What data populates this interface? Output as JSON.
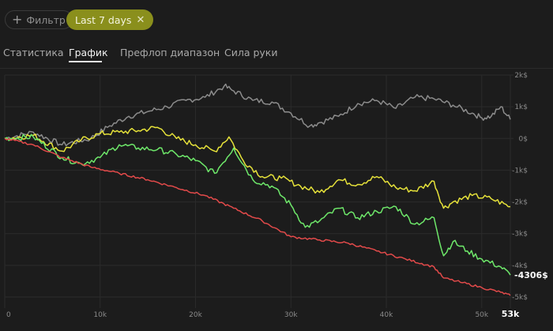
{
  "toolbar": {
    "filter_label": "Фильтр",
    "filter_icon": "plus-icon",
    "period_chip_label": "Last 7 days",
    "period_chip_close_icon": "close-icon",
    "accent_color": "#8a8f1c"
  },
  "tabs": [
    {
      "label": "Статистика",
      "active": false
    },
    {
      "label": "График",
      "active": true
    },
    {
      "label": "Префлоп диапазон",
      "active": false
    },
    {
      "label": "Сила руки",
      "active": false
    }
  ],
  "chart_data": {
    "type": "line",
    "title": "",
    "xlabel": "",
    "ylabel": "",
    "xlim": [
      0,
      53000
    ],
    "ylim": [
      -5000,
      2000
    ],
    "x_tick_labels": [
      "0",
      "10k",
      "20k",
      "30k",
      "40k",
      "50k"
    ],
    "x_end_label": "53k",
    "y_tick_labels": [
      "2k$",
      "1k$",
      "0$",
      "-1k$",
      "-2k$",
      "-3k$",
      "-4k$",
      "-5k$"
    ],
    "grid": true,
    "legend": "none",
    "end_value_label": "-4306$",
    "series": [
      {
        "color": "#8c8c8c",
        "x": [
          0,
          3000,
          6000,
          9000,
          11000,
          13000,
          15000,
          17000,
          19000,
          21000,
          23000,
          24000,
          26000,
          28000,
          30000,
          32000,
          33000,
          35000,
          37000,
          39000,
          41000,
          43000,
          45000,
          47000,
          49000,
          50000,
          51000,
          52000,
          53000
        ],
        "y": [
          0,
          200,
          -200,
          0,
          400,
          700,
          850,
          1000,
          1200,
          1300,
          1650,
          1500,
          1200,
          1150,
          800,
          400,
          500,
          700,
          1100,
          1200,
          950,
          1300,
          1250,
          1050,
          800,
          650,
          700,
          1000,
          600
        ]
      },
      {
        "color": "#e6e23a",
        "x": [
          0,
          3000,
          6000,
          8000,
          10000,
          12000,
          14000,
          16000,
          18000,
          20000,
          22000,
          23500,
          25000,
          27000,
          29000,
          31000,
          33000,
          35000,
          37000,
          39000,
          41000,
          43000,
          45000,
          46000,
          47000,
          49000,
          51000,
          53000
        ],
        "y": [
          0,
          100,
          -400,
          -50,
          150,
          200,
          250,
          350,
          0,
          -200,
          -400,
          50,
          -700,
          -1200,
          -1250,
          -1500,
          -1700,
          -1300,
          -1450,
          -1200,
          -1550,
          -1650,
          -1350,
          -2200,
          -2000,
          -1800,
          -1900,
          -2150
        ]
      },
      {
        "color": "#6ee86a",
        "x": [
          0,
          3000,
          6000,
          8000,
          10000,
          12000,
          14000,
          16000,
          18000,
          20000,
          22000,
          24000,
          26000,
          28000,
          30000,
          31500,
          33000,
          35000,
          37000,
          39000,
          41000,
          43000,
          45000,
          46000,
          47000,
          48500,
          50000,
          52000,
          53000
        ],
        "y": [
          0,
          50,
          -600,
          -800,
          -600,
          -200,
          -300,
          -350,
          -500,
          -700,
          -1100,
          -300,
          -1300,
          -1500,
          -2100,
          -2800,
          -2600,
          -2200,
          -2500,
          -2300,
          -2150,
          -2700,
          -2500,
          -3700,
          -3250,
          -3550,
          -3800,
          -4050,
          -4306
        ]
      },
      {
        "color": "#e24a4a",
        "x": [
          0,
          3000,
          6000,
          9000,
          12000,
          15000,
          18000,
          21000,
          24000,
          27000,
          30000,
          33000,
          36000,
          39000,
          42000,
          45000,
          46000,
          48000,
          50000,
          52000,
          53000
        ],
        "y": [
          0,
          -200,
          -600,
          -900,
          -1100,
          -1300,
          -1550,
          -1800,
          -2200,
          -2600,
          -3100,
          -3200,
          -3300,
          -3550,
          -3800,
          -4050,
          -4400,
          -4550,
          -4700,
          -4850,
          -4950
        ]
      }
    ]
  }
}
